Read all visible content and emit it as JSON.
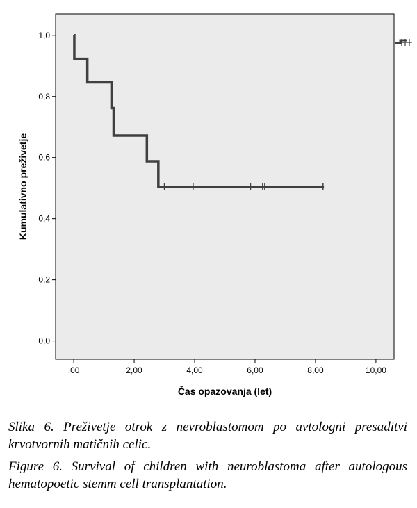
{
  "chart_data": {
    "type": "line",
    "xlabel": "Čas opazovanja (let)",
    "ylabel": "Kumulativno preživetje",
    "xlim": [
      -0.6,
      10.6
    ],
    "ylim": [
      -0.06,
      1.07
    ],
    "x_ticks": [
      0,
      2,
      4,
      6,
      8,
      10
    ],
    "x_tick_labels": [
      ",00",
      "2,00",
      "4,00",
      "6,00",
      "8,00",
      "10,00"
    ],
    "y_ticks": [
      0,
      0.2,
      0.4,
      0.6,
      0.8,
      1.0
    ],
    "y_tick_labels": [
      "0,0",
      "0,2",
      "0,4",
      "0,6",
      "0,8",
      "1,0"
    ],
    "grid": false,
    "colors": {
      "background": "#ebebeb",
      "line": "#404040",
      "axis": "#000000"
    },
    "series": [
      {
        "step_points": [
          [
            0,
            1.0
          ],
          [
            0.02,
            0.923
          ],
          [
            0.45,
            0.846
          ],
          [
            1.25,
            0.762
          ],
          [
            1.32,
            0.672
          ],
          [
            2.42,
            0.588
          ],
          [
            2.8,
            0.504
          ],
          [
            8.28,
            0.504
          ]
        ],
        "censored_x": [
          3.0,
          3.95,
          5.85,
          6.25,
          6.32,
          8.25
        ]
      }
    ]
  },
  "caption_sl": "Slika 6. Preživetje otrok z nevroblastomom po avtologni presaditvi krvotvornih matičnih celic.",
  "caption_en": "Figure 6. Survival of children with neuroblastoma after autologous hematopoetic stemm cell transplantation."
}
